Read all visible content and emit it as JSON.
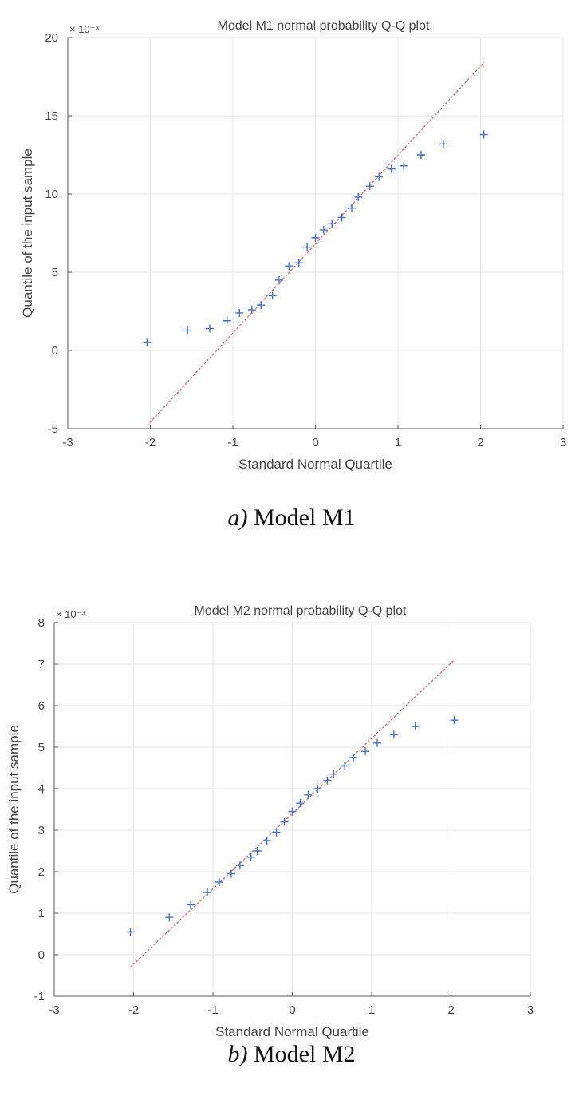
{
  "chart_data": [
    {
      "type": "scatter",
      "title": "Model M1 normal probability Q-Q plot",
      "xlabel": "Standard Normal Quartile",
      "ylabel": "Quantile of the input sample",
      "exponent_label": "× 10⁻³",
      "xlim": [
        -3,
        3
      ],
      "ylim": [
        -5,
        20
      ],
      "xticks": [
        -3,
        -2,
        -1,
        0,
        1,
        2,
        3
      ],
      "yticks": [
        -5,
        0,
        5,
        10,
        15,
        20
      ],
      "grid": true,
      "marker": "+",
      "colors": {
        "points": "#3f6fd6",
        "reference_line": "#e06666",
        "grid": "#e4e4e4",
        "axis": "#555555"
      },
      "reference_line": {
        "x": [
          -2.04,
          2.04
        ],
        "y": [
          -4.8,
          18.4
        ]
      },
      "points": {
        "x": [
          -2.04,
          -1.55,
          -1.28,
          -1.07,
          -0.92,
          -0.77,
          -0.66,
          -0.52,
          -0.44,
          -0.32,
          -0.2,
          -0.1,
          0.0,
          0.1,
          0.2,
          0.32,
          0.44,
          0.52,
          0.66,
          0.77,
          0.92,
          1.07,
          1.28,
          1.55,
          2.04
        ],
        "y": [
          0.5,
          1.3,
          1.4,
          1.9,
          2.4,
          2.6,
          2.9,
          3.5,
          4.5,
          5.4,
          5.6,
          6.6,
          7.2,
          7.7,
          8.1,
          8.5,
          9.1,
          9.8,
          10.5,
          11.1,
          11.6,
          11.8,
          12.5,
          13.2,
          13.8
        ]
      }
    },
    {
      "type": "scatter",
      "title": "Model M2 normal probability Q-Q plot",
      "xlabel": "Standard Normal Quartile",
      "ylabel": "Quantile of the input sample",
      "exponent_label": "× 10⁻³",
      "xlim": [
        -3,
        3
      ],
      "ylim": [
        -1,
        8
      ],
      "xticks": [
        -3,
        -2,
        -1,
        0,
        1,
        2,
        3
      ],
      "yticks": [
        -1,
        0,
        1,
        2,
        3,
        4,
        5,
        6,
        7,
        8
      ],
      "grid": true,
      "marker": "+",
      "colors": {
        "points": "#3f6fd6",
        "reference_line": "#e06666",
        "grid": "#e4e4e4",
        "axis": "#555555"
      },
      "reference_line": {
        "x": [
          -2.04,
          2.04
        ],
        "y": [
          -0.3,
          7.1
        ]
      },
      "points": {
        "x": [
          -2.04,
          -1.55,
          -1.28,
          -1.07,
          -0.92,
          -0.77,
          -0.66,
          -0.52,
          -0.44,
          -0.32,
          -0.2,
          -0.1,
          0.0,
          0.1,
          0.2,
          0.32,
          0.44,
          0.52,
          0.66,
          0.77,
          0.92,
          1.07,
          1.28,
          1.55,
          2.04
        ],
        "y": [
          0.55,
          0.9,
          1.2,
          1.5,
          1.75,
          1.95,
          2.15,
          2.35,
          2.5,
          2.75,
          2.95,
          3.2,
          3.45,
          3.65,
          3.85,
          4.0,
          4.2,
          4.35,
          4.55,
          4.75,
          4.9,
          5.1,
          5.3,
          5.5,
          5.65
        ]
      }
    }
  ],
  "captions": [
    {
      "label": "a)",
      "text": " Model M1"
    },
    {
      "label": "b)",
      "text": " Model M2"
    }
  ]
}
